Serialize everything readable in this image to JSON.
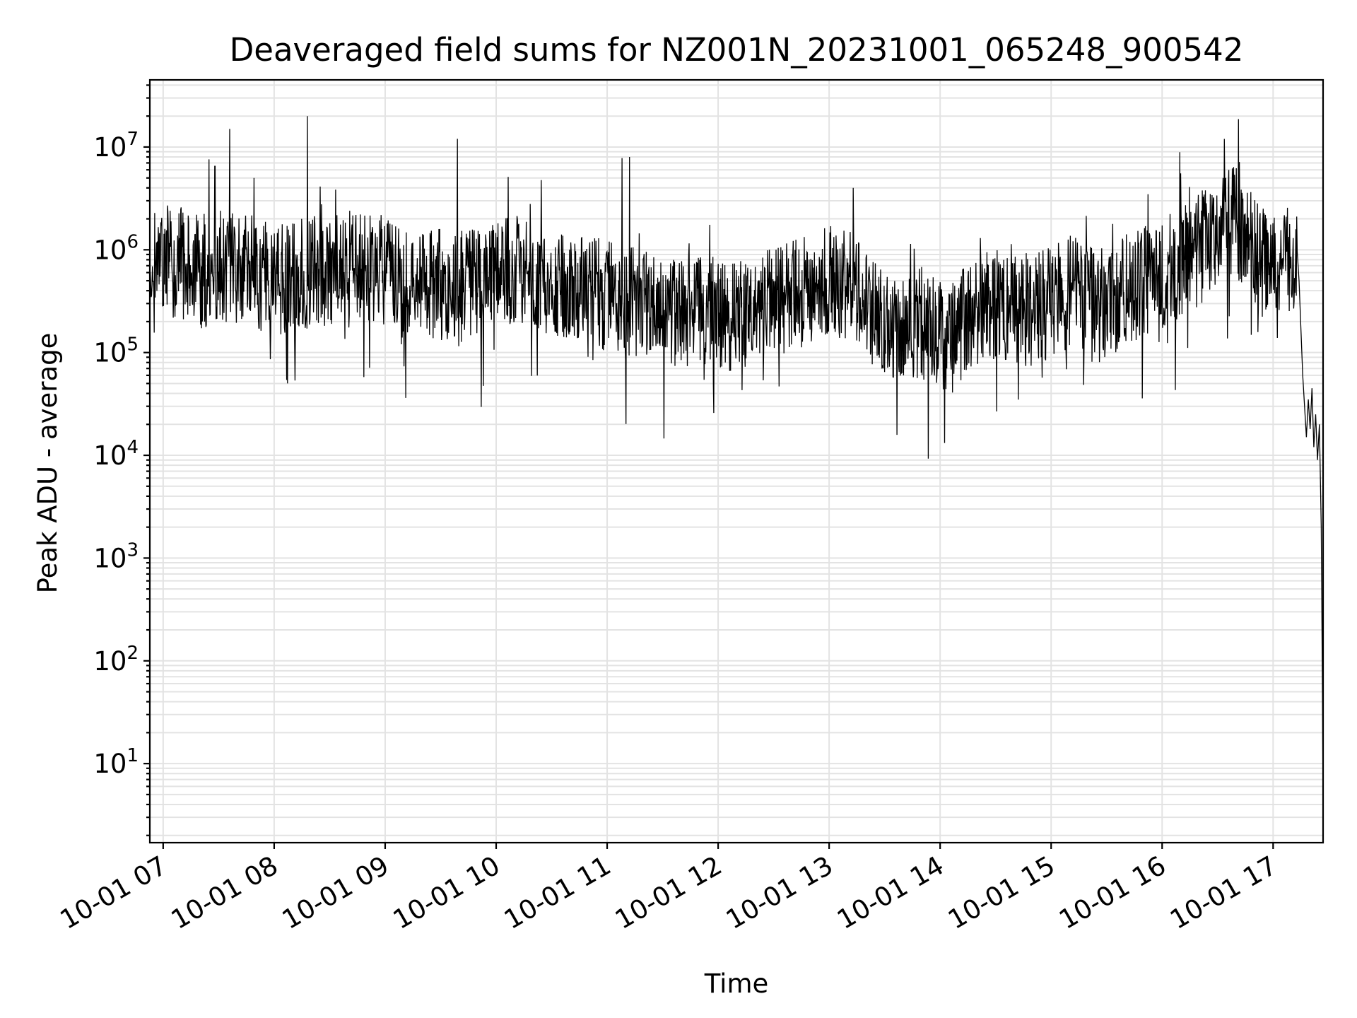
{
  "chart_data": {
    "type": "line",
    "title": "Deaveraged field sums for NZ001N_20231001_065248_900542",
    "xlabel": "Time",
    "ylabel": "Peak ADU - average",
    "yscale": "log",
    "ylim": [
      1.7,
      45000000
    ],
    "xlim": [
      "2023-10-01 06:52:48",
      "2023-10-01 17:27:00"
    ],
    "grid": true,
    "color": "#000000",
    "x_ticks": [
      "10-01 07",
      "10-01 08",
      "10-01 09",
      "10-01 10",
      "10-01 11",
      "10-01 12",
      "10-01 13",
      "10-01 14",
      "10-01 15",
      "10-01 16",
      "10-01 17"
    ],
    "y_ticks": [
      {
        "base": "10",
        "exp": "1",
        "value": 10
      },
      {
        "base": "10",
        "exp": "2",
        "value": 100
      },
      {
        "base": "10",
        "exp": "3",
        "value": 1000
      },
      {
        "base": "10",
        "exp": "4",
        "value": 10000
      },
      {
        "base": "10",
        "exp": "5",
        "value": 100000
      },
      {
        "base": "10",
        "exp": "6",
        "value": 1000000
      },
      {
        "base": "10",
        "exp": "7",
        "value": 10000000
      }
    ],
    "series": [
      {
        "x": [
          "2023-10-01 06:52:48",
          "2023-10-01 07:00",
          "2023-10-01 07:10",
          "2023-10-01 07:20",
          "2023-10-01 07:30",
          "2023-10-01 07:40",
          "2023-10-01 07:50",
          "2023-10-01 08:00",
          "2023-10-01 08:10",
          "2023-10-01 08:20",
          "2023-10-01 08:30",
          "2023-10-01 08:40",
          "2023-10-01 08:50",
          "2023-10-01 09:00",
          "2023-10-01 09:10",
          "2023-10-01 09:20",
          "2023-10-01 09:30",
          "2023-10-01 09:40",
          "2023-10-01 09:50",
          "2023-10-01 10:00",
          "2023-10-01 10:10",
          "2023-10-01 10:20",
          "2023-10-01 10:30",
          "2023-10-01 10:40",
          "2023-10-01 10:50",
          "2023-10-01 11:00",
          "2023-10-01 11:10",
          "2023-10-01 11:20",
          "2023-10-01 11:30",
          "2023-10-01 11:40",
          "2023-10-01 11:50",
          "2023-10-01 12:00",
          "2023-10-01 12:10",
          "2023-10-01 12:20",
          "2023-10-01 12:30",
          "2023-10-01 12:40",
          "2023-10-01 12:50",
          "2023-10-01 13:00",
          "2023-10-01 13:10",
          "2023-10-01 13:20",
          "2023-10-01 13:30",
          "2023-10-01 13:40",
          "2023-10-01 13:50",
          "2023-10-01 14:00",
          "2023-10-01 14:10",
          "2023-10-01 14:20",
          "2023-10-01 14:30",
          "2023-10-01 14:40",
          "2023-10-01 14:50",
          "2023-10-01 15:00",
          "2023-10-01 15:10",
          "2023-10-01 15:20",
          "2023-10-01 15:30",
          "2023-10-01 15:40",
          "2023-10-01 15:50",
          "2023-10-01 16:00",
          "2023-10-01 16:10",
          "2023-10-01 16:20",
          "2023-10-01 16:30",
          "2023-10-01 16:40",
          "2023-10-01 16:50",
          "2023-10-01 17:00",
          "2023-10-01 17:10",
          "2023-10-01 17:15",
          "2023-10-01 17:20",
          "2023-10-01 17:25",
          "2023-10-01 17:27"
        ],
        "y": [
          450000,
          800000,
          750000,
          600000,
          700000,
          650000,
          600000,
          500000,
          550000,
          600000,
          650000,
          700000,
          600000,
          650000,
          550000,
          500000,
          450000,
          400000,
          500000,
          600000,
          700000,
          650000,
          500000,
          450000,
          400000,
          350000,
          300000,
          320000,
          280000,
          250000,
          260000,
          240000,
          220000,
          280000,
          300000,
          350000,
          400000,
          500000,
          450000,
          300000,
          200000,
          180000,
          200000,
          150000,
          170000,
          250000,
          300000,
          280000,
          260000,
          300000,
          400000,
          350000,
          300000,
          400000,
          500000,
          600000,
          700000,
          1000000,
          1500000,
          2000000,
          900000,
          600000,
          800000,
          700000,
          100000,
          15000,
          3.5
        ]
      }
    ],
    "spikes": [
      {
        "x": "2023-10-01 07:36",
        "y": 15000000
      },
      {
        "x": "2023-10-01 08:18",
        "y": 20000000
      },
      {
        "x": "2023-10-01 09:39",
        "y": 12000000
      },
      {
        "x": "2023-10-01 11:08",
        "y": 7800000
      },
      {
        "x": "2023-10-01 11:12",
        "y": 8000000
      },
      {
        "x": "2023-10-01 13:13",
        "y": 4000000
      },
      {
        "x": "2023-10-01 07:49",
        "y": 5000000
      },
      {
        "x": "2023-10-01 07:28",
        "y": 6500000
      },
      {
        "x": "2023-10-01 16:33",
        "y": 5000000
      }
    ]
  }
}
